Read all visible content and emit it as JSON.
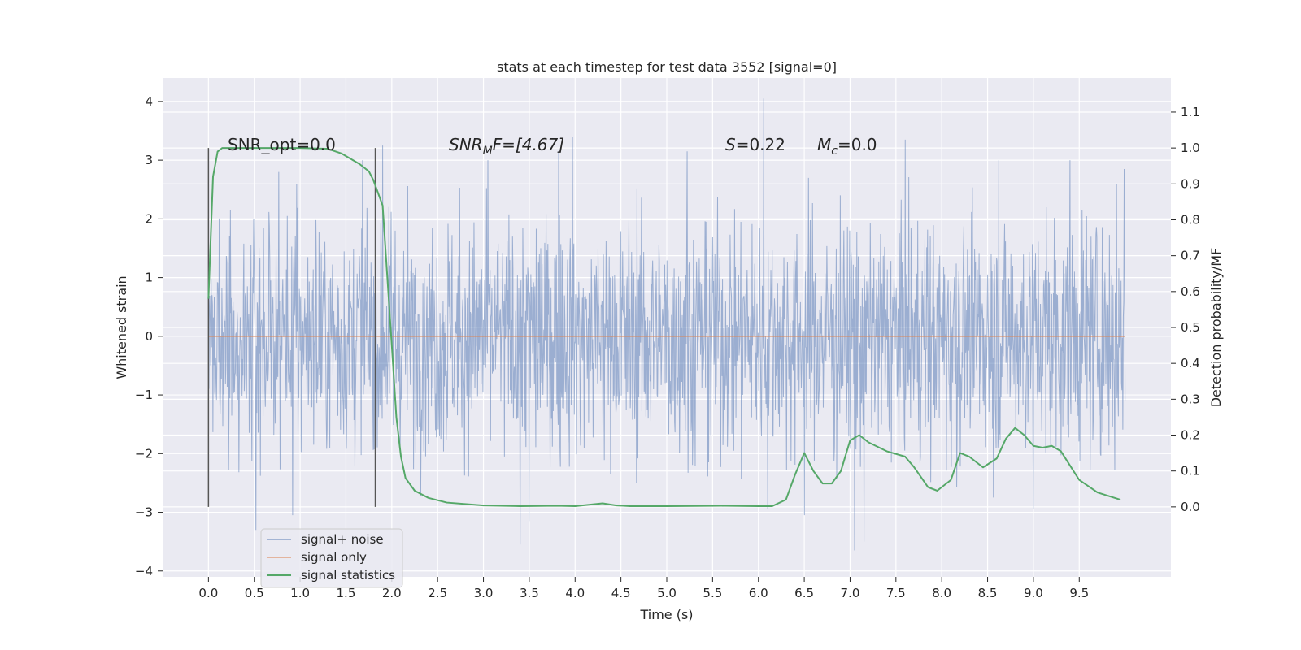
{
  "chart_data": {
    "type": "line",
    "title": "stats at each timestep for test data 3552 [signal=0]",
    "xlabel": "Time (s)",
    "ylabel": "Whitened strain",
    "y2label": "Detection probability/MF",
    "xlim": [
      -0.5,
      10.5
    ],
    "ylim": [
      -4.1,
      4.4
    ],
    "y2lim": [
      -0.195,
      1.195
    ],
    "xticks": [
      0.0,
      0.5,
      1.0,
      1.5,
      2.0,
      2.5,
      3.0,
      3.5,
      4.0,
      4.5,
      5.0,
      5.5,
      6.0,
      6.5,
      7.0,
      7.5,
      8.0,
      8.5,
      9.0,
      9.5
    ],
    "xtick_labels": [
      "0.0",
      "0.5",
      "1.0",
      "1.5",
      "2.0",
      "2.5",
      "3.0",
      "3.5",
      "4.0",
      "4.5",
      "5.0",
      "5.5",
      "6.0",
      "6.5",
      "7.0",
      "7.5",
      "8.0",
      "8.5",
      "9.0",
      "9.5"
    ],
    "yticks": [
      4,
      3,
      2,
      1,
      0,
      -1,
      -2,
      -3,
      -4
    ],
    "ytick_labels": [
      "4",
      "3",
      "2",
      "1",
      "0",
      "−1",
      "−2",
      "−3",
      "−4"
    ],
    "y2ticks": [
      1.1,
      1.0,
      0.9,
      0.8,
      0.7,
      0.6,
      0.5,
      0.4,
      0.3,
      0.2,
      0.1,
      0.0
    ],
    "y2tick_labels": [
      "1.1",
      "1.0",
      "0.9",
      "0.8",
      "0.7",
      "0.6",
      "0.5",
      "0.4",
      "0.3",
      "0.2",
      "0.1",
      "0.0"
    ],
    "grid": true,
    "legend_position": "lower-left",
    "legend": [
      "signal+ noise",
      "signal only",
      "signal statistics"
    ],
    "annotations": {
      "snr_opt": "SNR_opt=0.0",
      "snr_mf_base": "SNR",
      "snr_mf_sub": "M",
      "snr_mf_rest": "F=[4.67]",
      "s_var": "S",
      "s_rest": "=0.22",
      "mc_var": "M",
      "mc_sub": "c",
      "mc_rest": "=0.0"
    },
    "vertical_markers": {
      "x": [
        0.0,
        1.82
      ],
      "y_range": [
        0.0,
        1.0
      ]
    },
    "series": [
      {
        "name": "signal+ noise",
        "axis": "left",
        "color": "#4c72b0",
        "alpha": 0.5,
        "x_range": [
          0.0,
          10.0
        ],
        "approx_std": 1.0,
        "peaks": [
          {
            "x": 0.96,
            "y": 2.6
          },
          {
            "x": 1.68,
            "y": 3.0
          },
          {
            "x": 1.9,
            "y": 3.25
          },
          {
            "x": 3.05,
            "y": 3.0
          },
          {
            "x": 3.82,
            "y": 3.15
          },
          {
            "x": 3.97,
            "y": 3.4
          },
          {
            "x": 5.22,
            "y": 3.15
          },
          {
            "x": 6.06,
            "y": 4.05
          },
          {
            "x": 7.05,
            "y": 3.3
          },
          {
            "x": 7.6,
            "y": 3.35
          },
          {
            "x": 8.62,
            "y": 3.0
          },
          {
            "x": 9.4,
            "y": 3.0
          },
          {
            "x": 9.99,
            "y": 2.85
          }
        ],
        "troughs": [
          {
            "x": 0.52,
            "y": -3.3
          },
          {
            "x": 0.92,
            "y": -3.05
          },
          {
            "x": 3.4,
            "y": -3.55
          },
          {
            "x": 3.5,
            "y": -3.15
          },
          {
            "x": 6.1,
            "y": -2.95
          },
          {
            "x": 6.5,
            "y": -3.05
          },
          {
            "x": 7.05,
            "y": -3.65
          },
          {
            "x": 7.15,
            "y": -3.5
          },
          {
            "x": 9.0,
            "y": -2.95
          }
        ]
      },
      {
        "name": "signal only",
        "axis": "left",
        "color": "#dd8452",
        "x": [
          0.0,
          10.0
        ],
        "y": [
          0.0,
          0.0
        ]
      },
      {
        "name": "signal statistics",
        "axis": "right",
        "color": "#55a868",
        "x": [
          0.0,
          0.05,
          0.1,
          0.15,
          0.25,
          0.4,
          1.0,
          1.3,
          1.45,
          1.55,
          1.65,
          1.75,
          1.8,
          1.9,
          2.0,
          2.05,
          2.1,
          2.15,
          2.25,
          2.4,
          2.6,
          3.0,
          3.4,
          3.8,
          4.0,
          4.3,
          4.45,
          4.6,
          5.0,
          5.6,
          6.0,
          6.15,
          6.3,
          6.4,
          6.5,
          6.6,
          6.7,
          6.8,
          6.9,
          7.0,
          7.1,
          7.2,
          7.4,
          7.6,
          7.7,
          7.85,
          7.95,
          8.1,
          8.2,
          8.3,
          8.45,
          8.6,
          8.7,
          8.8,
          8.9,
          9.0,
          9.1,
          9.2,
          9.3,
          9.5,
          9.7,
          9.95
        ],
        "y": [
          0.58,
          0.92,
          0.99,
          1.0,
          1.0,
          1.0,
          1.0,
          0.998,
          0.985,
          0.97,
          0.955,
          0.935,
          0.91,
          0.84,
          0.45,
          0.25,
          0.14,
          0.08,
          0.045,
          0.025,
          0.012,
          0.004,
          0.002,
          0.003,
          0.002,
          0.01,
          0.004,
          0.002,
          0.002,
          0.003,
          0.002,
          0.002,
          0.02,
          0.09,
          0.15,
          0.1,
          0.065,
          0.065,
          0.1,
          0.185,
          0.2,
          0.18,
          0.155,
          0.14,
          0.11,
          0.055,
          0.045,
          0.075,
          0.15,
          0.14,
          0.11,
          0.135,
          0.19,
          0.22,
          0.2,
          0.17,
          0.165,
          0.17,
          0.155,
          0.075,
          0.04,
          0.02
        ]
      }
    ]
  }
}
